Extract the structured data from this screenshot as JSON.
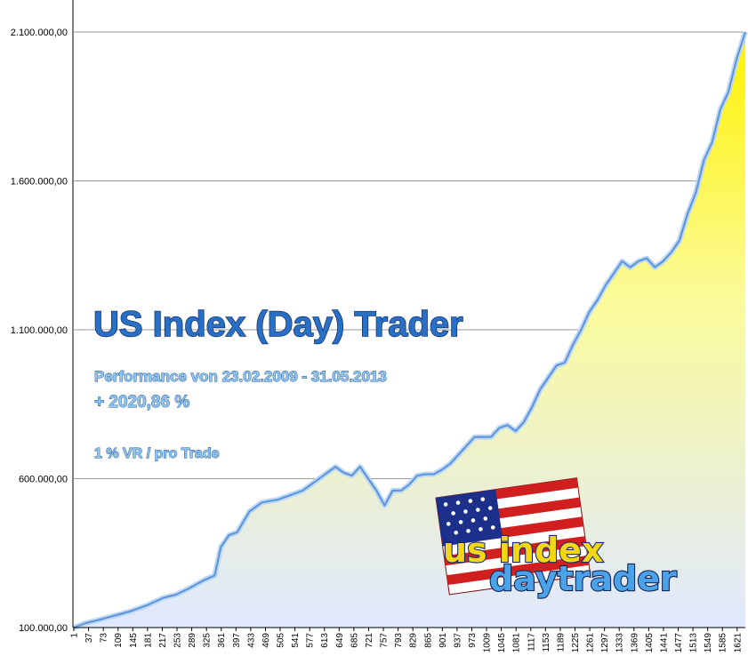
{
  "chart_data": {
    "type": "area",
    "title": "US Index (Day) Trader",
    "annotations": {
      "performance": "Performance  von  23.02.2009 - 31.05.2013",
      "gain": "+ 2020,86 %",
      "risk": "1 % VR / pro Trade"
    },
    "logo": {
      "line1": "us index",
      "line2": "daytrader"
    },
    "y_ticks": [
      "100.000,00",
      "600.000,00",
      "1.100.000,00",
      "1.600.000,00",
      "2.100.000,00"
    ],
    "y_tick_values": [
      100000,
      600000,
      1100000,
      1600000,
      2100000
    ],
    "ylim": [
      100000,
      2100000
    ],
    "x_ticks": [
      "1",
      "37",
      "73",
      "109",
      "145",
      "181",
      "217",
      "253",
      "289",
      "325",
      "361",
      "397",
      "433",
      "469",
      "505",
      "541",
      "577",
      "613",
      "649",
      "685",
      "721",
      "757",
      "793",
      "829",
      "865",
      "901",
      "937",
      "973",
      "1009",
      "1045",
      "1081",
      "1117",
      "1153",
      "1189",
      "1225",
      "1261",
      "1297",
      "1333",
      "1369",
      "1405",
      "1441",
      "1477",
      "1513",
      "1549",
      "1585",
      "1621"
    ],
    "xlim": [
      1,
      1641
    ],
    "grid": true,
    "colors": {
      "line": "#7fb0e6",
      "fill_top": "#fff200",
      "fill_bottom": "#e2ebff",
      "grid": "#9a9a9a"
    },
    "series": [
      {
        "x": [
          1,
          30,
          60,
          100,
          140,
          180,
          220,
          250,
          280,
          320,
          345,
          360,
          380,
          400,
          430,
          460,
          500,
          540,
          560,
          580,
          600,
          620,
          640,
          660,
          680,
          700,
          720,
          740,
          760,
          780,
          800,
          820,
          840,
          860,
          880,
          900,
          920,
          940,
          960,
          980,
          1000,
          1020,
          1040,
          1060,
          1080,
          1100,
          1120,
          1140,
          1160,
          1180,
          1200,
          1220,
          1240,
          1260,
          1280,
          1300,
          1320,
          1340,
          1360,
          1380,
          1400,
          1420,
          1440,
          1460,
          1480,
          1500,
          1520,
          1540,
          1560,
          1580,
          1600,
          1620,
          1641
        ],
        "values": [
          100000,
          115000,
          125000,
          140000,
          155000,
          175000,
          200000,
          210000,
          230000,
          260000,
          275000,
          370000,
          410000,
          420000,
          490000,
          520000,
          530000,
          550000,
          560000,
          580000,
          600000,
          620000,
          640000,
          620000,
          610000,
          640000,
          600000,
          560000,
          510000,
          560000,
          560000,
          580000,
          610000,
          615000,
          615000,
          630000,
          650000,
          680000,
          710000,
          740000,
          740000,
          740000,
          770000,
          780000,
          760000,
          790000,
          840000,
          900000,
          940000,
          980000,
          990000,
          1050000,
          1100000,
          1160000,
          1200000,
          1250000,
          1290000,
          1330000,
          1310000,
          1330000,
          1340000,
          1310000,
          1330000,
          1360000,
          1400000,
          1490000,
          1560000,
          1670000,
          1730000,
          1840000,
          1900000,
          2010000,
          2100000
        ]
      }
    ]
  }
}
